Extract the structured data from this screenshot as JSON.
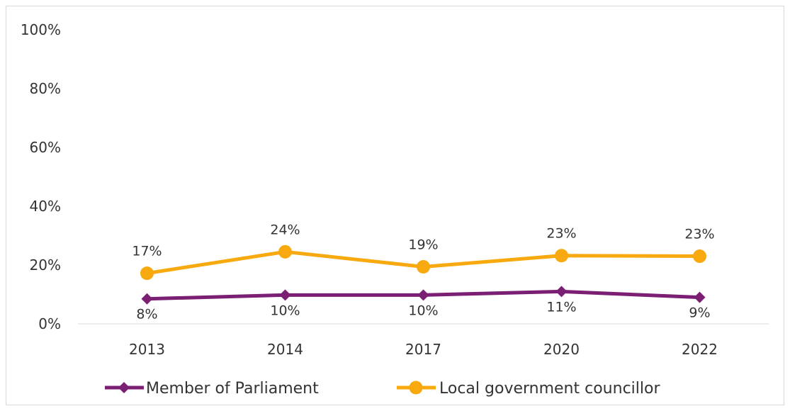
{
  "chart_data": {
    "type": "line",
    "title": "",
    "xlabel": "",
    "ylabel": "",
    "categories": [
      "2013",
      "2014",
      "2017",
      "2020",
      "2022"
    ],
    "ylim": [
      0,
      100
    ],
    "y_ticks": [
      "0%",
      "20%",
      "40%",
      "60%",
      "80%",
      "100%"
    ],
    "y_tick_values": [
      0,
      20,
      40,
      60,
      80,
      100
    ],
    "grid": false,
    "legend_position": "bottom",
    "series": [
      {
        "name": "Member of Parliament",
        "values": [
          8.5,
          9.8,
          9.8,
          11.0,
          9.0
        ],
        "labels": [
          "8%",
          "10%",
          "10%",
          "11%",
          "9%"
        ],
        "color": "#7a1f73",
        "marker": "diamond"
      },
      {
        "name": "Local government councillor",
        "values": [
          17.2,
          24.5,
          19.4,
          23.2,
          23.0
        ],
        "labels": [
          "17%",
          "24%",
          "19%",
          "23%",
          "23%"
        ],
        "color": "#f7a90f",
        "marker": "circle"
      }
    ]
  }
}
